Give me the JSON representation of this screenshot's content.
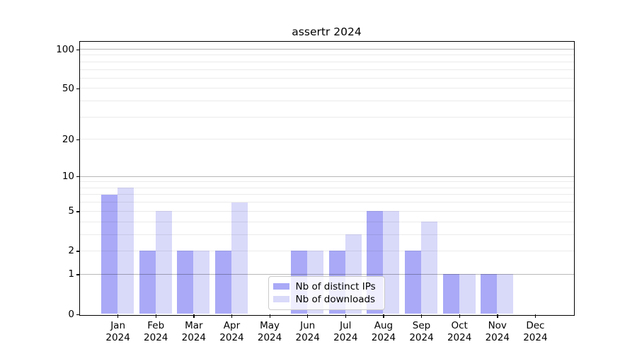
{
  "chart_data": {
    "type": "bar",
    "title": "assertr 2024",
    "categories": [
      "Jan",
      "Feb",
      "Mar",
      "Apr",
      "May",
      "Jun",
      "Jul",
      "Aug",
      "Sep",
      "Oct",
      "Nov",
      "Dec"
    ],
    "x_year_label": "2024",
    "series": [
      {
        "name": "Nb of distinct IPs",
        "color": "#a9a9f7",
        "values": [
          7,
          2,
          2,
          2,
          0,
          2,
          2,
          5,
          2,
          1,
          1,
          0
        ]
      },
      {
        "name": "Nb of downloads",
        "color": "#d9d9fa",
        "values": [
          8,
          5,
          2,
          6,
          0,
          2,
          3,
          5,
          4,
          1,
          1,
          0
        ]
      }
    ],
    "yscale": "log10(1+x)",
    "ylim": [
      0,
      100
    ],
    "y_ticks": [
      0,
      1,
      2,
      5,
      10,
      20,
      50,
      100
    ],
    "y_tick_labels": [
      "0",
      "1",
      "2",
      "5",
      "10",
      "20",
      "50",
      "100"
    ],
    "y_minor_gridlines": [
      3,
      4,
      6,
      7,
      8,
      9,
      30,
      40,
      60,
      70,
      80,
      90
    ],
    "y_emphasized_gridlines": [
      1,
      10,
      100
    ],
    "grid": true,
    "legend_position": "bottom-center",
    "colors": {
      "background": "#ffffff",
      "axis": "#000000",
      "grid_minor": "#ebebeb",
      "grid_major": "#b8b8b8",
      "text": "#000000"
    }
  }
}
